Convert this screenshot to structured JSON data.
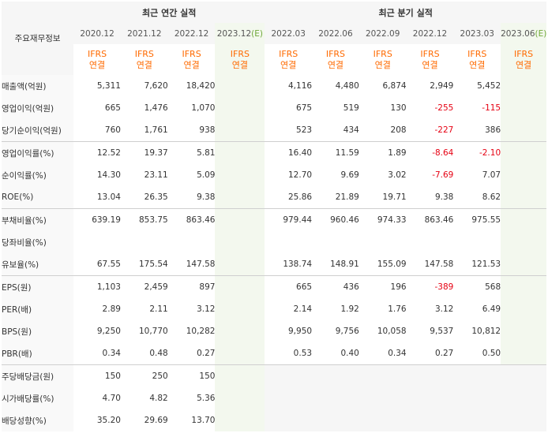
{
  "table": {
    "corner_label": "주요재무정보",
    "annual_header": "최근 연간 실적",
    "quarter_header": "최근 분기 실적",
    "annual_periods": [
      "2020.12",
      "2021.12",
      "2022.12",
      "2023.12"
    ],
    "annual_estimate_mark": "(E)",
    "quarter_periods": [
      "2022.03",
      "2022.06",
      "2022.09",
      "2022.12",
      "2023.03",
      "2023.06"
    ],
    "quarter_estimate_mark": "(E)",
    "basis_line1": "IFRS",
    "basis_line2": "연결",
    "rows": [
      {
        "label": "매출액(억원)",
        "values": [
          "5,311",
          "7,620",
          "18,420",
          "",
          "4,116",
          "4,480",
          "6,874",
          "2,949",
          "5,452",
          ""
        ]
      },
      {
        "label": "영업이익(억원)",
        "values": [
          "665",
          "1,476",
          "1,070",
          "",
          "675",
          "519",
          "130",
          "-255",
          "-115",
          ""
        ]
      },
      {
        "label": "당기순이익(억원)",
        "values": [
          "760",
          "1,761",
          "938",
          "",
          "523",
          "434",
          "208",
          "-227",
          "386",
          ""
        ]
      },
      {
        "label": "영업이익률(%)",
        "values": [
          "12.52",
          "19.37",
          "5.81",
          "",
          "16.40",
          "11.59",
          "1.89",
          "-8.64",
          "-2.10",
          ""
        ]
      },
      {
        "label": "순이익률(%)",
        "values": [
          "14.30",
          "23.11",
          "5.09",
          "",
          "12.70",
          "9.69",
          "3.02",
          "-7.69",
          "7.07",
          ""
        ]
      },
      {
        "label": "ROE(%)",
        "values": [
          "13.04",
          "26.35",
          "9.38",
          "",
          "25.86",
          "21.89",
          "19.71",
          "9.38",
          "8.62",
          ""
        ]
      },
      {
        "label": "부채비율(%)",
        "values": [
          "639.19",
          "853.75",
          "863.46",
          "",
          "979.44",
          "960.46",
          "974.33",
          "863.46",
          "975.55",
          ""
        ]
      },
      {
        "label": "당좌비율(%)",
        "values": [
          "",
          "",
          "",
          "",
          "",
          "",
          "",
          "",
          "",
          ""
        ]
      },
      {
        "label": "유보율(%)",
        "values": [
          "67.55",
          "175.54",
          "147.58",
          "",
          "138.74",
          "148.91",
          "155.09",
          "147.58",
          "121.53",
          ""
        ]
      },
      {
        "label": "EPS(원)",
        "values": [
          "1,103",
          "2,459",
          "897",
          "",
          "665",
          "436",
          "196",
          "-389",
          "568",
          ""
        ]
      },
      {
        "label": "PER(배)",
        "values": [
          "2.89",
          "2.11",
          "3.12",
          "",
          "2.14",
          "1.92",
          "1.76",
          "3.12",
          "6.49",
          ""
        ]
      },
      {
        "label": "BPS(원)",
        "values": [
          "9,250",
          "10,770",
          "10,282",
          "",
          "9,950",
          "9,756",
          "10,058",
          "9,537",
          "10,812",
          ""
        ]
      },
      {
        "label": "PBR(배)",
        "values": [
          "0.34",
          "0.48",
          "0.27",
          "",
          "0.53",
          "0.40",
          "0.34",
          "0.27",
          "0.50",
          ""
        ]
      },
      {
        "label": "주당배당금(원)",
        "values": [
          "150",
          "250",
          "150",
          "",
          "",
          "",
          "",
          "",
          "",
          ""
        ]
      },
      {
        "label": "시가배당률(%)",
        "values": [
          "4.70",
          "4.82",
          "5.36",
          "",
          "",
          "",
          "",
          "",
          "",
          ""
        ]
      },
      {
        "label": "배당성향(%)",
        "values": [
          "35.20",
          "29.69",
          "13.70",
          "",
          "",
          "",
          "",
          "",
          "",
          ""
        ]
      }
    ]
  },
  "colors": {
    "negative": "#e60012",
    "basis": "#ff6a00",
    "estimate_mark": "#70a83a",
    "estimate_bg": "#f3f8ee"
  }
}
